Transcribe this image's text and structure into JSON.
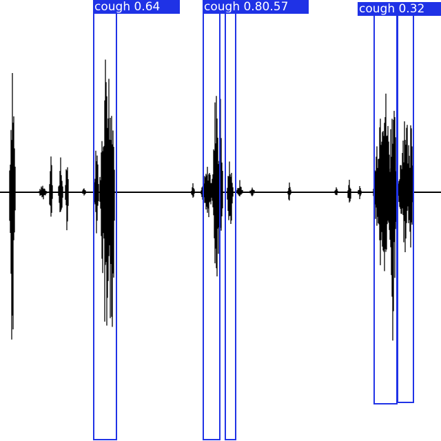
{
  "image": {
    "background": "#ffffff",
    "waveform_color": "#000000",
    "box_color": "#1f32e6",
    "label_text_color": "#ffffff"
  },
  "detections": [
    {
      "class": "cough",
      "confidence": "0.64",
      "label": "cough 0.64"
    },
    {
      "class": "cough",
      "confidence": "0.8",
      "label": "cough 0.80.57"
    },
    {
      "class": "cough",
      "confidence": "0.57",
      "label": ""
    },
    {
      "class": "cough",
      "confidence": "0.32",
      "label": "cough 0.32"
    },
    {
      "class": "cough",
      "confidence": "",
      "label": ""
    }
  ]
}
